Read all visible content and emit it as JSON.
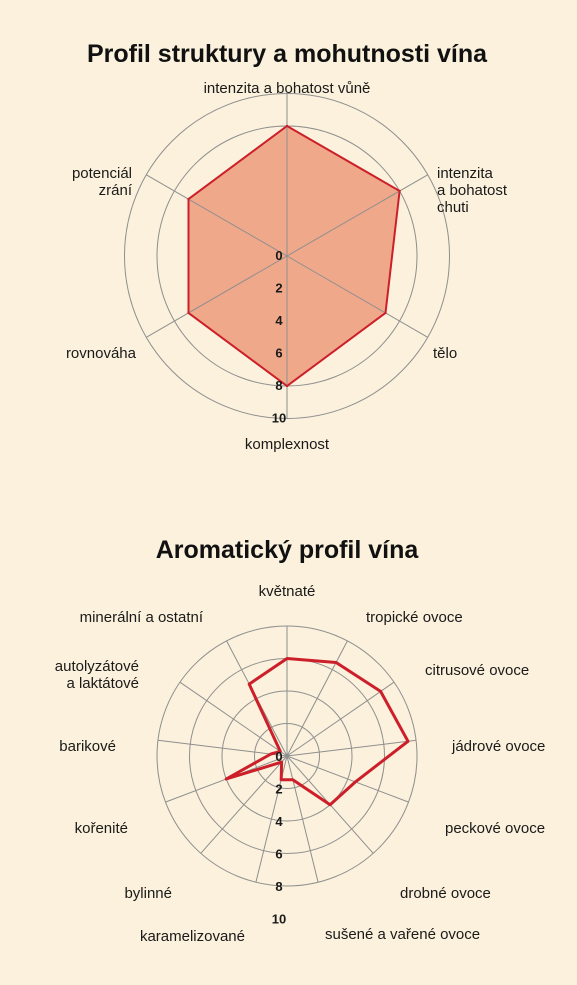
{
  "colors": {
    "background": "#fbf1dc",
    "grid": "#8f8f8f",
    "line": "#cc1f2a",
    "fill": "#f0a88a"
  },
  "chart_data": [
    {
      "type": "radar",
      "title": "Profil struktury a mohutnosti vína",
      "axes": [
        "intenzita a bohatost vůně",
        "intenzita\na bohatost\nchuti",
        "tělo",
        "komplexnost",
        "rovnováha",
        "potenciál\nzrání"
      ],
      "values": [
        8,
        8,
        7,
        8,
        7,
        7
      ],
      "ticks": [
        "0",
        "2",
        "4",
        "6",
        "8",
        "10"
      ],
      "rlim": [
        0,
        10
      ],
      "filled": true
    },
    {
      "type": "radar",
      "title": "Aromatický profil vína",
      "axes": [
        "květnaté",
        "tropické ovoce",
        "citrusové ovoce",
        "jádrové ovoce",
        "peckové ovoce",
        "drobné ovoce",
        "sušené a vařené ovoce",
        "karamelizované",
        "bylinné",
        "kořenité",
        "barikové",
        "autolyzátové\na laktátové",
        "minerální a ostatní"
      ],
      "values": [
        6,
        6.5,
        7,
        7.5,
        4.5,
        4,
        1.5,
        1.5,
        0.5,
        4,
        1,
        0.5,
        5
      ],
      "ticks": [
        "0",
        "2",
        "4",
        "6",
        "8",
        "10"
      ],
      "rlim": [
        0,
        10
      ],
      "filled": false
    }
  ]
}
